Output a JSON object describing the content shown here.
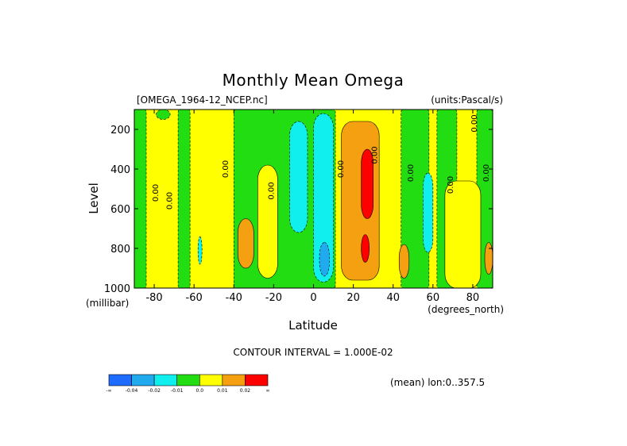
{
  "chart_data": {
    "type": "contour",
    "title": "Monthly Mean Omega",
    "subtitle_left": "[OMEGA_1964-12_NCEP.nc]",
    "subtitle_right": "(units:Pascal/s)",
    "xlabel": "Latitude",
    "ylabel": "Level",
    "x_unit_label": "(degrees_north)",
    "y_unit_label": "(millibar)",
    "xlim": [
      -90,
      90
    ],
    "ylim": [
      1000,
      100
    ],
    "x_ticks": [
      -80,
      -60,
      -40,
      -20,
      0,
      20,
      40,
      60,
      80
    ],
    "y_ticks": [
      200,
      400,
      600,
      800,
      1000
    ],
    "contour_interval_text": "CONTOUR INTERVAL = 1.000E-02",
    "footer_right": "(mean) lon:0..357.5",
    "colorbar": {
      "labels": [
        "-∞",
        "-0.04",
        "-0.02",
        "-0.01",
        "0.0",
        "0.01",
        "0.02",
        "∞"
      ],
      "colors": [
        "#1e6cff",
        "#22aaee",
        "#11eeee",
        "#22dd11",
        "#ffff00",
        "#f5a010",
        "#ff0000"
      ]
    },
    "contour_labels": [
      "0.00",
      "0.00",
      "0.00",
      "0.00",
      "0.00",
      "0.00",
      "0.00",
      "0.00",
      "0.00",
      "0.00"
    ],
    "regions": [
      {
        "level": "0.0",
        "color_index": 4,
        "lat": [
          -90,
          90
        ],
        "p": [
          100,
          1000
        ]
      },
      {
        "level": "-0.01",
        "color_index": 3,
        "lat": [
          -90,
          -84
        ],
        "p": [
          100,
          1000
        ]
      },
      {
        "level": "-0.01",
        "color_index": 3,
        "lat": [
          -79,
          -72
        ],
        "p": [
          100,
          150
        ]
      },
      {
        "level": "-0.01",
        "color_index": 3,
        "lat": [
          -68,
          -62
        ],
        "p": [
          100,
          1000
        ]
      },
      {
        "level": "-0.01",
        "color_index": 3,
        "lat": [
          -40,
          11
        ],
        "p": [
          100,
          1000
        ]
      },
      {
        "level": "-0.01",
        "color_index": 3,
        "lat": [
          44,
          58
        ],
        "p": [
          100,
          1000
        ]
      },
      {
        "level": "-0.01",
        "color_index": 3,
        "lat": [
          62,
          72
        ],
        "p": [
          100,
          1000
        ]
      },
      {
        "level": "-0.01",
        "color_index": 3,
        "lat": [
          82,
          90
        ],
        "p": [
          100,
          1000
        ]
      },
      {
        "level": "0.0",
        "color_index": 4,
        "lat": [
          -28,
          -18
        ],
        "p": [
          380,
          950
        ]
      },
      {
        "level": "0.0",
        "color_index": 4,
        "lat": [
          66,
          84
        ],
        "p": [
          460,
          1000
        ]
      },
      {
        "level": "0.01",
        "color_index": 5,
        "lat": [
          -38,
          -30
        ],
        "p": [
          650,
          900
        ]
      },
      {
        "level": "0.01",
        "color_index": 5,
        "lat": [
          14,
          33
        ],
        "p": [
          160,
          960
        ]
      },
      {
        "level": "0.01",
        "color_index": 5,
        "lat": [
          43,
          48
        ],
        "p": [
          780,
          950
        ]
      },
      {
        "level": "0.01",
        "color_index": 5,
        "lat": [
          86,
          90
        ],
        "p": [
          770,
          930
        ]
      },
      {
        "level": "0.02",
        "color_index": 6,
        "lat": [
          24,
          30
        ],
        "p": [
          300,
          650
        ]
      },
      {
        "level": "0.02",
        "color_index": 6,
        "lat": [
          24,
          28
        ],
        "p": [
          730,
          870
        ]
      },
      {
        "level": "-0.02",
        "color_index": 2,
        "lat": [
          -12,
          -3
        ],
        "p": [
          160,
          720
        ]
      },
      {
        "level": "-0.02",
        "color_index": 2,
        "lat": [
          0,
          10
        ],
        "p": [
          120,
          970
        ]
      },
      {
        "level": "-0.02",
        "color_index": 2,
        "lat": [
          55,
          60
        ],
        "p": [
          420,
          820
        ]
      },
      {
        "level": "-0.02",
        "color_index": 2,
        "lat": [
          -58,
          -56
        ],
        "p": [
          740,
          880
        ]
      },
      {
        "level": "-0.04",
        "color_index": 1,
        "lat": [
          3,
          8
        ],
        "p": [
          770,
          940
        ]
      }
    ]
  }
}
